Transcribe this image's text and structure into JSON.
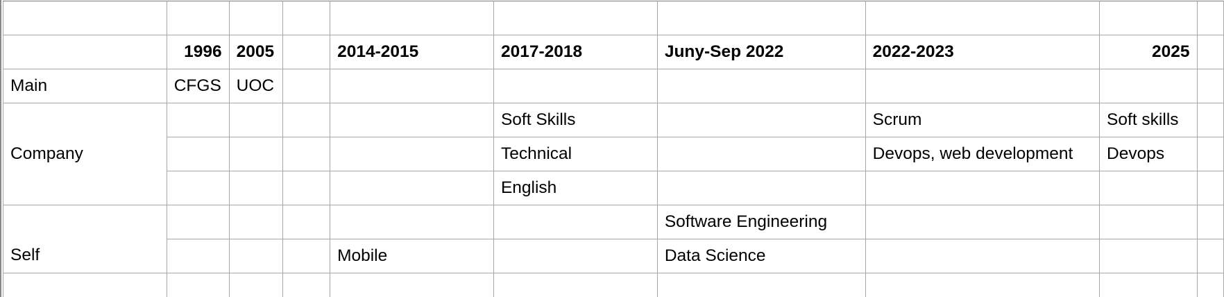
{
  "sheet": {
    "headers": {
      "c1996": "1996",
      "c2005": "2005",
      "c2014": "2014-2015",
      "c2017": "2017-2018",
      "cjuny": "Juny-Sep 2022",
      "c2022": "2022-2023",
      "c2025": "2025"
    },
    "rows": {
      "main": {
        "label": "Main",
        "c1996": "CFGS",
        "c2005": "UOC"
      },
      "company": {
        "label": "Company",
        "softskills_2017": "Soft Skills",
        "scrum_2022": "Scrum",
        "softskills_2025": "Soft skills",
        "technical_2017": "Technical",
        "devops_web_2022": "Devops, web development",
        "devops_2025": "Devops",
        "english_2017": "English"
      },
      "self": {
        "label": "Self",
        "software_eng": "Software Engineering",
        "mobile": "Mobile",
        "data_science": "Data Science"
      }
    }
  }
}
